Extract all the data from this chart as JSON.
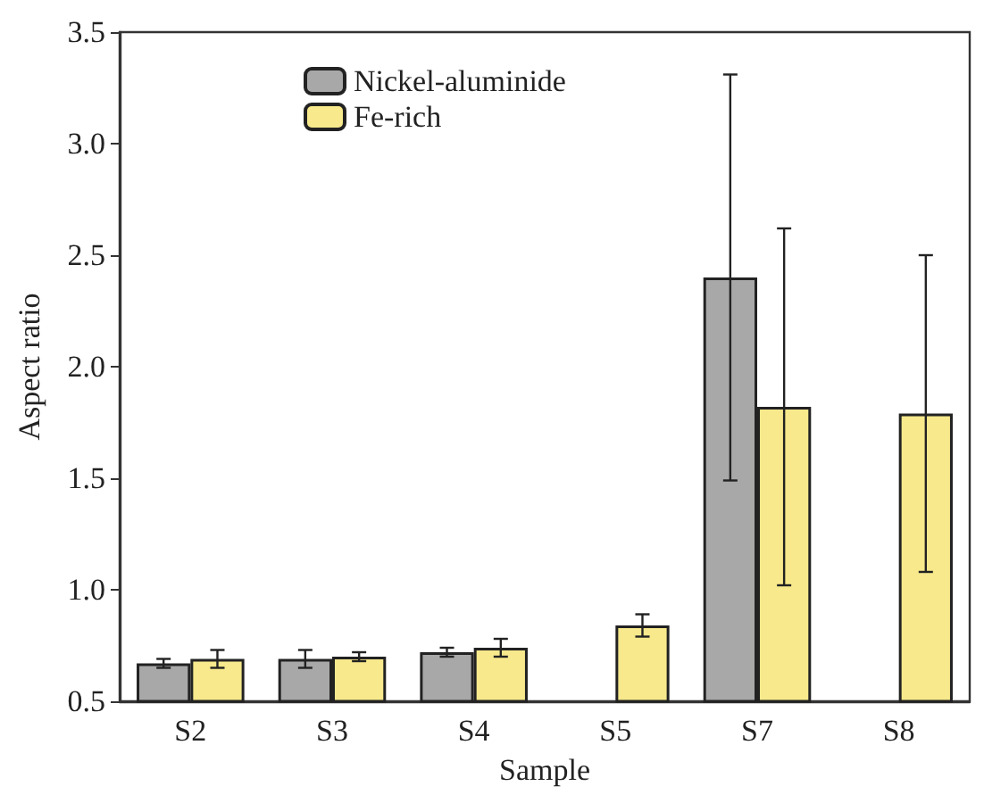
{
  "chart_data": {
    "type": "bar",
    "xlabel": "Sample",
    "ylabel": "Aspect ratio",
    "categories": [
      "S2",
      "S3",
      "S4",
      "S5",
      "S7",
      "S8"
    ],
    "series": [
      {
        "name": "Nickel-aluminide",
        "color": "#a8a8a8",
        "values": [
          0.67,
          0.69,
          0.72,
          null,
          2.4,
          null
        ],
        "errors": [
          0.02,
          0.04,
          0.02,
          null,
          0.91,
          null
        ]
      },
      {
        "name": "Fe-rich",
        "color": "#f7e98c",
        "values": [
          0.69,
          0.7,
          0.74,
          0.84,
          1.82,
          1.79
        ],
        "errors": [
          0.04,
          0.02,
          0.04,
          0.05,
          0.8,
          0.71
        ]
      }
    ],
    "ylim": [
      0.5,
      3.5
    ],
    "yticks": [
      {
        "value": 0.5,
        "label": "0.5"
      },
      {
        "value": 1,
        "label": "1.0"
      },
      {
        "value": 1.5,
        "label": "1.5"
      },
      {
        "value": 2,
        "label": "2.0"
      },
      {
        "value": 2.5,
        "label": "2.5"
      },
      {
        "value": 3,
        "label": "3.0"
      },
      {
        "value": 3.5,
        "label": "3.5"
      }
    ],
    "grid": false,
    "legend": "top left"
  }
}
